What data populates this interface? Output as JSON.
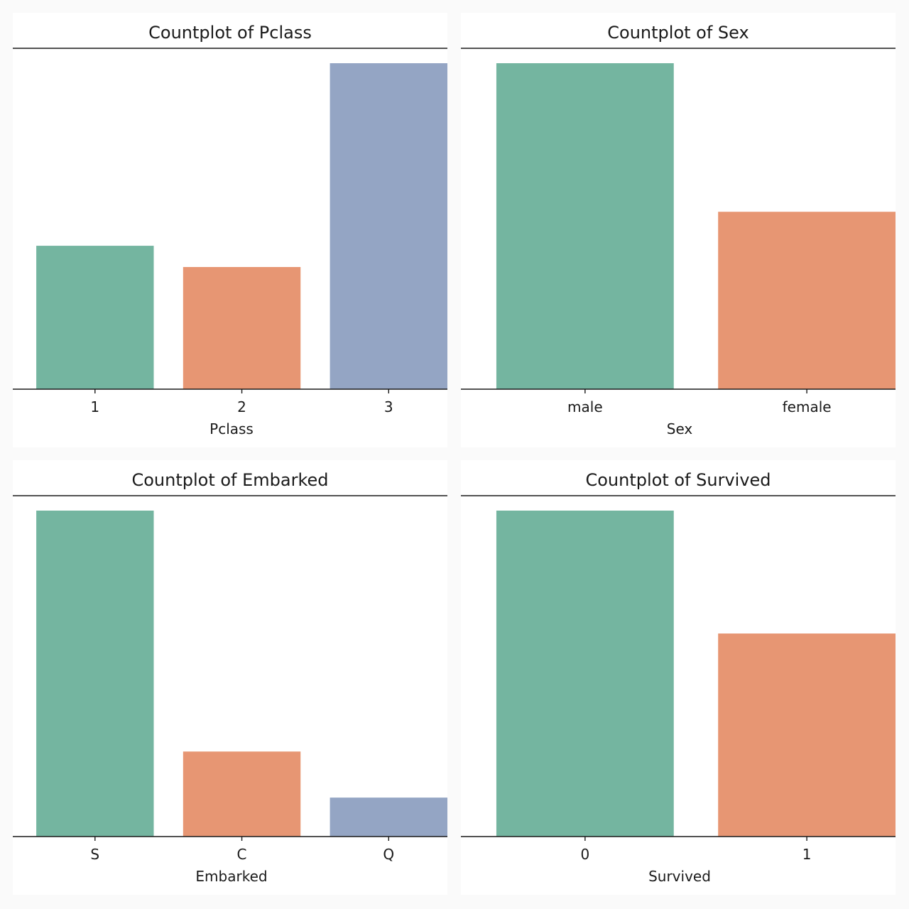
{
  "chart_data": [
    {
      "type": "bar",
      "title": "Countplot of Pclass",
      "xlabel": "Pclass",
      "ylabel": "",
      "categories": [
        "1",
        "2",
        "3"
      ],
      "values": [
        216,
        184,
        491
      ],
      "ylim": [
        0,
        491
      ],
      "colors": [
        "#74b5a0",
        "#e79673",
        "#94a5c4"
      ],
      "grid": false
    },
    {
      "type": "bar",
      "title": "Countplot of Sex",
      "xlabel": "Sex",
      "ylabel": "",
      "categories": [
        "male",
        "female"
      ],
      "values": [
        577,
        314
      ],
      "ylim": [
        0,
        577
      ],
      "colors": [
        "#74b5a0",
        "#e79673"
      ],
      "grid": false
    },
    {
      "type": "bar",
      "title": "Countplot of Embarked",
      "xlabel": "Embarked",
      "ylabel": "",
      "categories": [
        "S",
        "C",
        "Q"
      ],
      "values": [
        644,
        168,
        77
      ],
      "ylim": [
        0,
        644
      ],
      "colors": [
        "#74b5a0",
        "#e79673",
        "#94a5c4"
      ],
      "grid": false
    },
    {
      "type": "bar",
      "title": "Countplot of Survived",
      "xlabel": "Survived",
      "ylabel": "",
      "categories": [
        "0",
        "1"
      ],
      "values": [
        549,
        342
      ],
      "ylim": [
        0,
        549
      ],
      "colors": [
        "#74b5a0",
        "#e79673"
      ],
      "grid": false
    }
  ]
}
